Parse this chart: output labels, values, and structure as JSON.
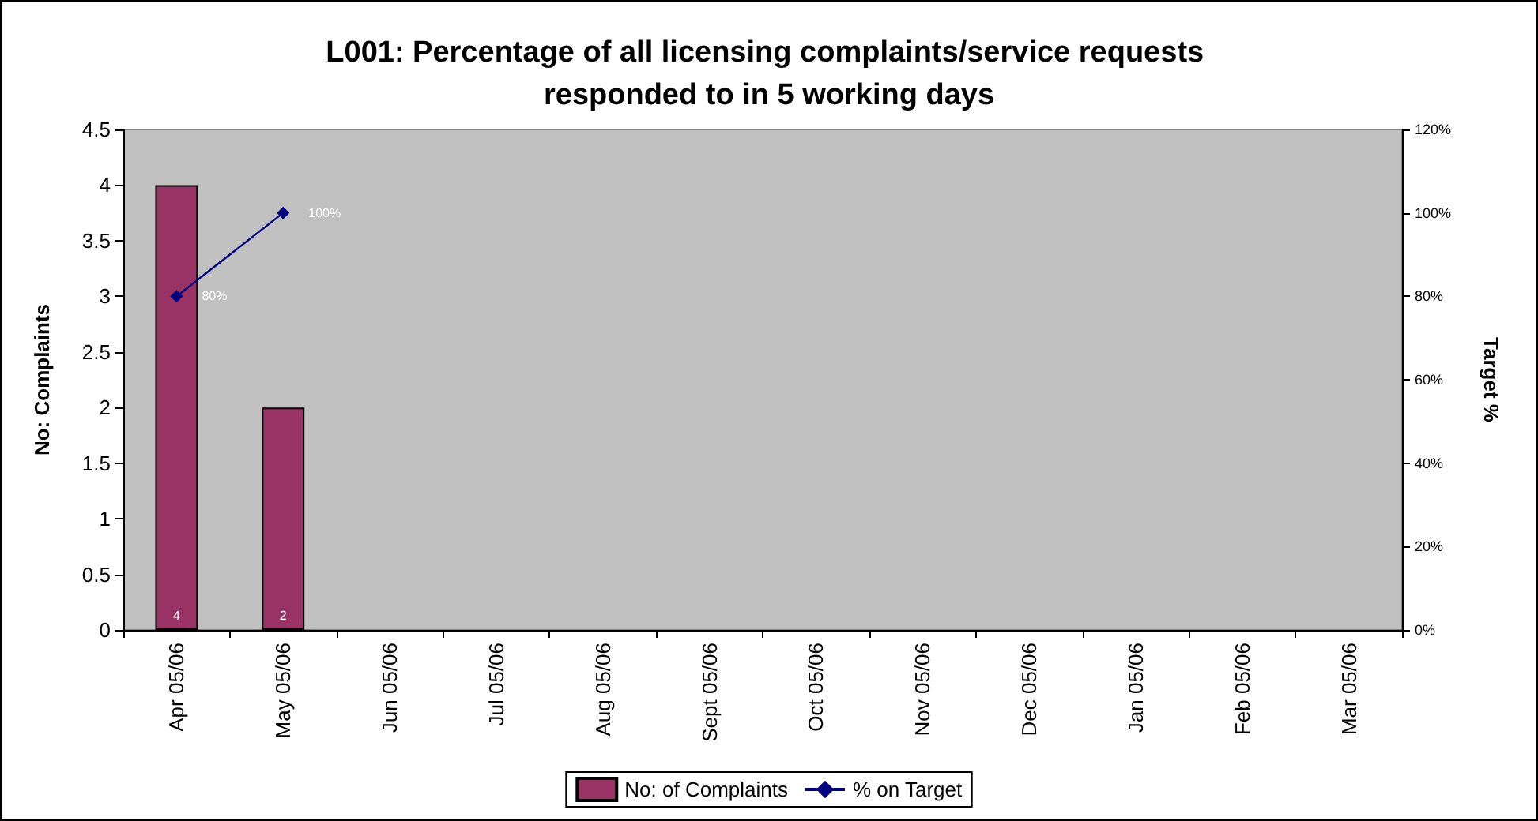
{
  "chart_data": {
    "type": "bar",
    "title": "L001: Percentage of all licensing complaints/service requests responded to in 5 working days",
    "ylabel": "No: Complaints",
    "y2label": "Target %",
    "categories": [
      "Apr 05/06",
      "May 05/06",
      "Jun 05/06",
      "Jul 05/06",
      "Aug 05/06",
      "Sept 05/06",
      "Oct 05/06",
      "Nov 05/06",
      "Dec 05/06",
      "Jan 05/06",
      "Feb 05/06",
      "Mar 05/06"
    ],
    "series": [
      {
        "name": "No: of Complaints",
        "color": "#993366",
        "values": [
          4,
          2,
          null,
          null,
          null,
          null,
          null,
          null,
          null,
          null,
          null,
          null
        ],
        "value_labels": [
          "4",
          "2",
          null,
          null,
          null,
          null,
          null,
          null,
          null,
          null,
          null,
          null
        ]
      },
      {
        "name": "% on Target",
        "type": "line",
        "axis": "y2",
        "color": "#000080",
        "marker": "diamond",
        "values": [
          80,
          100,
          null,
          null,
          null,
          null,
          null,
          null,
          null,
          null,
          null,
          null
        ],
        "value_labels": [
          "80%",
          "100%",
          null,
          null,
          null,
          null,
          null,
          null,
          null,
          null,
          null,
          null
        ]
      }
    ],
    "ylim": [
      0,
      4.5
    ],
    "yticks": [
      0,
      0.5,
      1,
      1.5,
      2,
      2.5,
      3,
      3.5,
      4,
      4.5
    ],
    "y2lim": [
      0,
      120
    ],
    "y2ticks": [
      {
        "value": 0,
        "label": "0%"
      },
      {
        "value": 20,
        "label": "20%"
      },
      {
        "value": 40,
        "label": "40%"
      },
      {
        "value": 60,
        "label": "60%"
      },
      {
        "value": 80,
        "label": "80%"
      },
      {
        "value": 100,
        "label": "100%"
      },
      {
        "value": 120,
        "label": "120%"
      }
    ],
    "legend": "bottom",
    "grid": false
  }
}
